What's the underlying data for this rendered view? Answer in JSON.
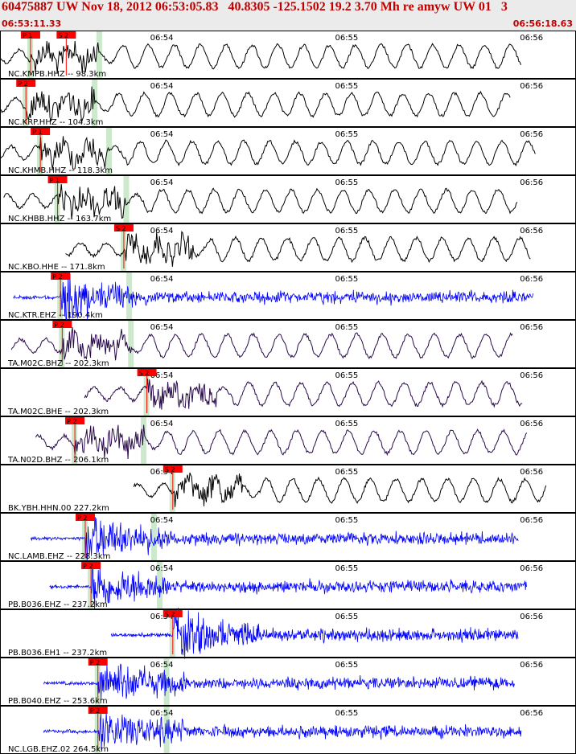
{
  "header": {
    "title": "60475887 UW Nov 18, 2012 06:53:05.83   40.8305 -125.1502 19.2 3.70 Mh re amyw UW 01   3",
    "start_time": "06:53:11.33",
    "end_time": "06:56:18.63"
  },
  "time_ticks": [
    {
      "label": "06:54",
      "t": 0.283
    },
    {
      "label": "06:55",
      "t": 0.604
    },
    {
      "label": "06:56",
      "t": 0.925
    }
  ],
  "colors": {
    "black_trace": "#000000",
    "blue_trace": "#0000ff",
    "purple_trace": "#2a0a4a",
    "pick": "#ff0000",
    "window": "#bfe3bf",
    "tick_label": "#000000"
  },
  "traces": [
    {
      "label": "NC.KMPB.HHZ -- 98.3km",
      "color": "black",
      "picks": [
        "P 1",
        "S 2"
      ],
      "pick_t": [
        0.053,
        0.115
      ]
    },
    {
      "label": "NC.KRP.HHZ -- 104.3km",
      "color": "black",
      "picks": [
        "P 2"
      ],
      "pick_t": [
        0.045
      ]
    },
    {
      "label": "NC.KHMB.HHZ -- 118.3km",
      "color": "black",
      "picks": [
        "P 1"
      ],
      "pick_t": [
        0.07
      ]
    },
    {
      "label": "NC.KHBB.HHZ -- 163.7km",
      "color": "black",
      "picks": [
        "P 1"
      ],
      "pick_t": [
        0.1
      ]
    },
    {
      "label": "NC.KBO.HHE -- 171.8km",
      "color": "black",
      "picks": [
        "S 2"
      ],
      "pick_t": [
        0.215
      ]
    },
    {
      "label": "NC.KTR.EHZ -- 190.4km",
      "color": "blue",
      "picks": [
        "P 2"
      ],
      "pick_t": [
        0.105
      ]
    },
    {
      "label": "TA.M02C.BHZ -- 202.3km",
      "color": "purple",
      "picks": [
        "P 2"
      ],
      "pick_t": [
        0.108
      ]
    },
    {
      "label": "TA.M02C.BHE -- 202.3km",
      "color": "purple",
      "picks": [
        "S 2"
      ],
      "pick_t": [
        0.255
      ]
    },
    {
      "label": "TA.N02D.BHZ -- 206.1km",
      "color": "purple",
      "picks": [
        "P 2"
      ],
      "pick_t": [
        0.13
      ]
    },
    {
      "label": "BK.YBH.HHN.00 227.2km",
      "color": "black",
      "picks": [
        "S 2"
      ],
      "pick_t": [
        0.3
      ]
    },
    {
      "label": "NC.LAMB.EHZ -- 228.3km",
      "color": "blue",
      "picks": [
        "P 2"
      ],
      "pick_t": [
        0.148
      ]
    },
    {
      "label": "PB.B036.EHZ -- 237.2km",
      "color": "blue",
      "picks": [
        "P 2"
      ],
      "pick_t": [
        0.158
      ]
    },
    {
      "label": "PB.B036.EH1 -- 237.2km",
      "color": "blue",
      "picks": [
        "S 2"
      ],
      "pick_t": [
        0.3
      ]
    },
    {
      "label": "PB.B040.EHZ -- 253.6km",
      "color": "blue",
      "picks": [
        "P 2"
      ],
      "pick_t": [
        0.17
      ]
    },
    {
      "label": "NC.LGB.EHZ.02 264.5km",
      "color": "blue",
      "picks": [
        "P 2"
      ],
      "pick_t": [
        0.17
      ]
    }
  ]
}
